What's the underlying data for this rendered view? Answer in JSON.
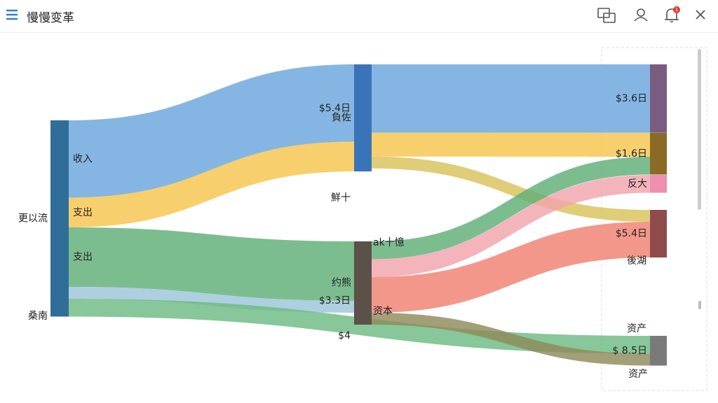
{
  "window": {
    "title": "慢慢变革",
    "badge": "1"
  },
  "chart_data": {
    "type": "sankey",
    "nodes": [
      {
        "name": "更以流",
        "color": "#2f6e99"
      },
      {
        "name": "負佐",
        "color": "#3a74b8"
      },
      {
        "name": "约熊",
        "color": "#5b5149"
      },
      {
        "name": "$3.6日",
        "color": "#7a5c80"
      },
      {
        "name": "$1.6日",
        "color": "#8a6a25"
      },
      {
        "name": "反大",
        "color": "#ef8fb0"
      },
      {
        "name": "$5.4日",
        "color": "#8f4b4b"
      },
      {
        "name": "$ 8.5日",
        "color": "#7a7a7a"
      }
    ],
    "links": [
      {
        "source": 0,
        "target": 1,
        "value": 13,
        "color": "#6aa6dd",
        "label": "收入"
      },
      {
        "source": 0,
        "target": 1,
        "value": 5,
        "color": "#f5c44c",
        "label": "支出"
      },
      {
        "source": 0,
        "target": 2,
        "value": 10,
        "color": "#5fae78",
        "label": "支出"
      },
      {
        "source": 0,
        "target": 2,
        "value": 2,
        "color": "#9cc4d8"
      },
      {
        "source": 0,
        "target": 7,
        "value": 3,
        "color": "#6dbb84"
      },
      {
        "source": 1,
        "target": 3,
        "value": 11.5,
        "color": "#6aa6dd"
      },
      {
        "source": 1,
        "target": 4,
        "value": 4,
        "color": "#f5c44c"
      },
      {
        "source": 1,
        "target": 6,
        "value": 2,
        "color": "#d8c25a"
      },
      {
        "source": 2,
        "target": 4,
        "value": 3,
        "color": "#5fae78"
      },
      {
        "source": 2,
        "target": 5,
        "value": 3,
        "color": "#f2a3ad"
      },
      {
        "source": 2,
        "target": 6,
        "value": 6,
        "color": "#f08070"
      },
      {
        "source": 2,
        "target": 7,
        "value": 2,
        "color": "#8f8a5a"
      }
    ],
    "annotations": [
      "$5.4日",
      "鮮十",
      "ak十憶",
      "$3.3日",
      "资本",
      "$4",
      "後湖",
      "资产",
      "资产",
      "桑南"
    ]
  }
}
